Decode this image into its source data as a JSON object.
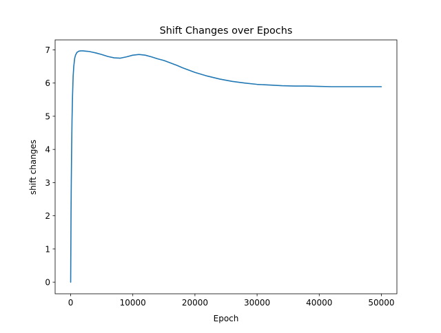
{
  "chart_data": {
    "type": "line",
    "title": "Shift Changes over Epochs",
    "xlabel": "Epoch",
    "ylabel": "shift changes",
    "xlim": [
      -2500,
      52500
    ],
    "ylim": [
      -0.35,
      7.3
    ],
    "x_ticks": [
      0,
      10000,
      20000,
      30000,
      40000,
      50000
    ],
    "x_tick_labels": [
      "0",
      "10000",
      "20000",
      "30000",
      "40000",
      "50000"
    ],
    "y_ticks": [
      0,
      1,
      2,
      3,
      4,
      5,
      6,
      7
    ],
    "y_tick_labels": [
      "0",
      "1",
      "2",
      "3",
      "4",
      "5",
      "6",
      "7"
    ],
    "grid": false,
    "legend": "none",
    "series": [
      {
        "color": "#1f77b4",
        "x": [
          0,
          30,
          60,
          100,
          150,
          220,
          300,
          400,
          500,
          650,
          800,
          1000,
          1300,
          1600,
          2000,
          2500,
          3000,
          3500,
          4000,
          5000,
          6000,
          7000,
          8000,
          9000,
          10000,
          11000,
          12000,
          13000,
          14000,
          15000,
          16000,
          17000,
          18000,
          19000,
          20000,
          22000,
          24000,
          26000,
          28000,
          30000,
          32000,
          34000,
          36000,
          38000,
          40000,
          42000,
          44000,
          46000,
          48000,
          50000
        ],
        "y": [
          0.0,
          1.0,
          2.1,
          3.0,
          3.9,
          4.9,
          5.6,
          6.2,
          6.5,
          6.75,
          6.85,
          6.92,
          6.96,
          6.97,
          6.97,
          6.96,
          6.95,
          6.93,
          6.91,
          6.86,
          6.8,
          6.76,
          6.75,
          6.79,
          6.84,
          6.86,
          6.84,
          6.79,
          6.73,
          6.68,
          6.61,
          6.54,
          6.46,
          6.39,
          6.32,
          6.21,
          6.12,
          6.05,
          6.0,
          5.96,
          5.94,
          5.92,
          5.91,
          5.91,
          5.9,
          5.89,
          5.89,
          5.89,
          5.89,
          5.89
        ]
      }
    ]
  }
}
